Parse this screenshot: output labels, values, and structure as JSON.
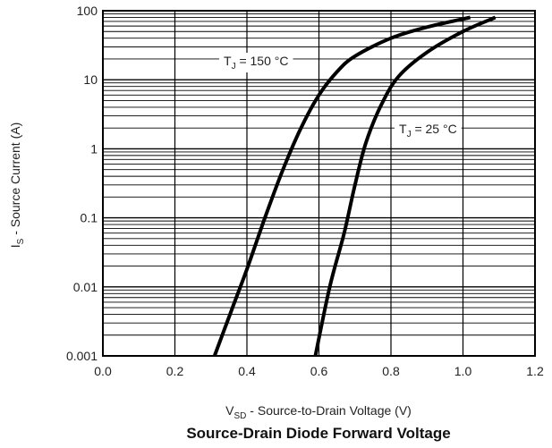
{
  "chart_data": {
    "type": "line",
    "title": "Source-Drain Diode Forward Voltage",
    "xlabel": {
      "main": "V",
      "sub": "SD",
      "rest": " - Source-to-Drain Voltage (V)"
    },
    "ylabel": {
      "main": "I",
      "sub": "S",
      "rest": " - Source Current (A)"
    },
    "xlim": [
      0.0,
      1.2
    ],
    "ylim": [
      0.001,
      100
    ],
    "yscale": "log",
    "grid": true,
    "x_ticks": [
      "0.0",
      "0.2",
      "0.4",
      "0.6",
      "0.8",
      "1.0",
      "1.2"
    ],
    "y_ticks": [
      "0.001",
      "0.01",
      "0.1",
      "1",
      "10",
      "100"
    ],
    "series": [
      {
        "name": {
          "main": "T",
          "sub": "J",
          "rest": " = 150 °C"
        },
        "points": [
          [
            0.31,
            0.001
          ],
          [
            0.36,
            0.005
          ],
          [
            0.4,
            0.018
          ],
          [
            0.45,
            0.1
          ],
          [
            0.5,
            0.5
          ],
          [
            0.55,
            2.0
          ],
          [
            0.6,
            6.0
          ],
          [
            0.65,
            13
          ],
          [
            0.7,
            22
          ],
          [
            0.8,
            40
          ],
          [
            0.9,
            58
          ],
          [
            1.02,
            80
          ]
        ]
      },
      {
        "name": {
          "main": "T",
          "sub": "J",
          "rest": " = 25 °C"
        },
        "points": [
          [
            0.59,
            0.001
          ],
          [
            0.63,
            0.01
          ],
          [
            0.67,
            0.06
          ],
          [
            0.7,
            0.3
          ],
          [
            0.73,
            1.2
          ],
          [
            0.77,
            4.0
          ],
          [
            0.82,
            11
          ],
          [
            0.9,
            25
          ],
          [
            1.0,
            50
          ],
          [
            1.09,
            80
          ]
        ]
      }
    ]
  }
}
